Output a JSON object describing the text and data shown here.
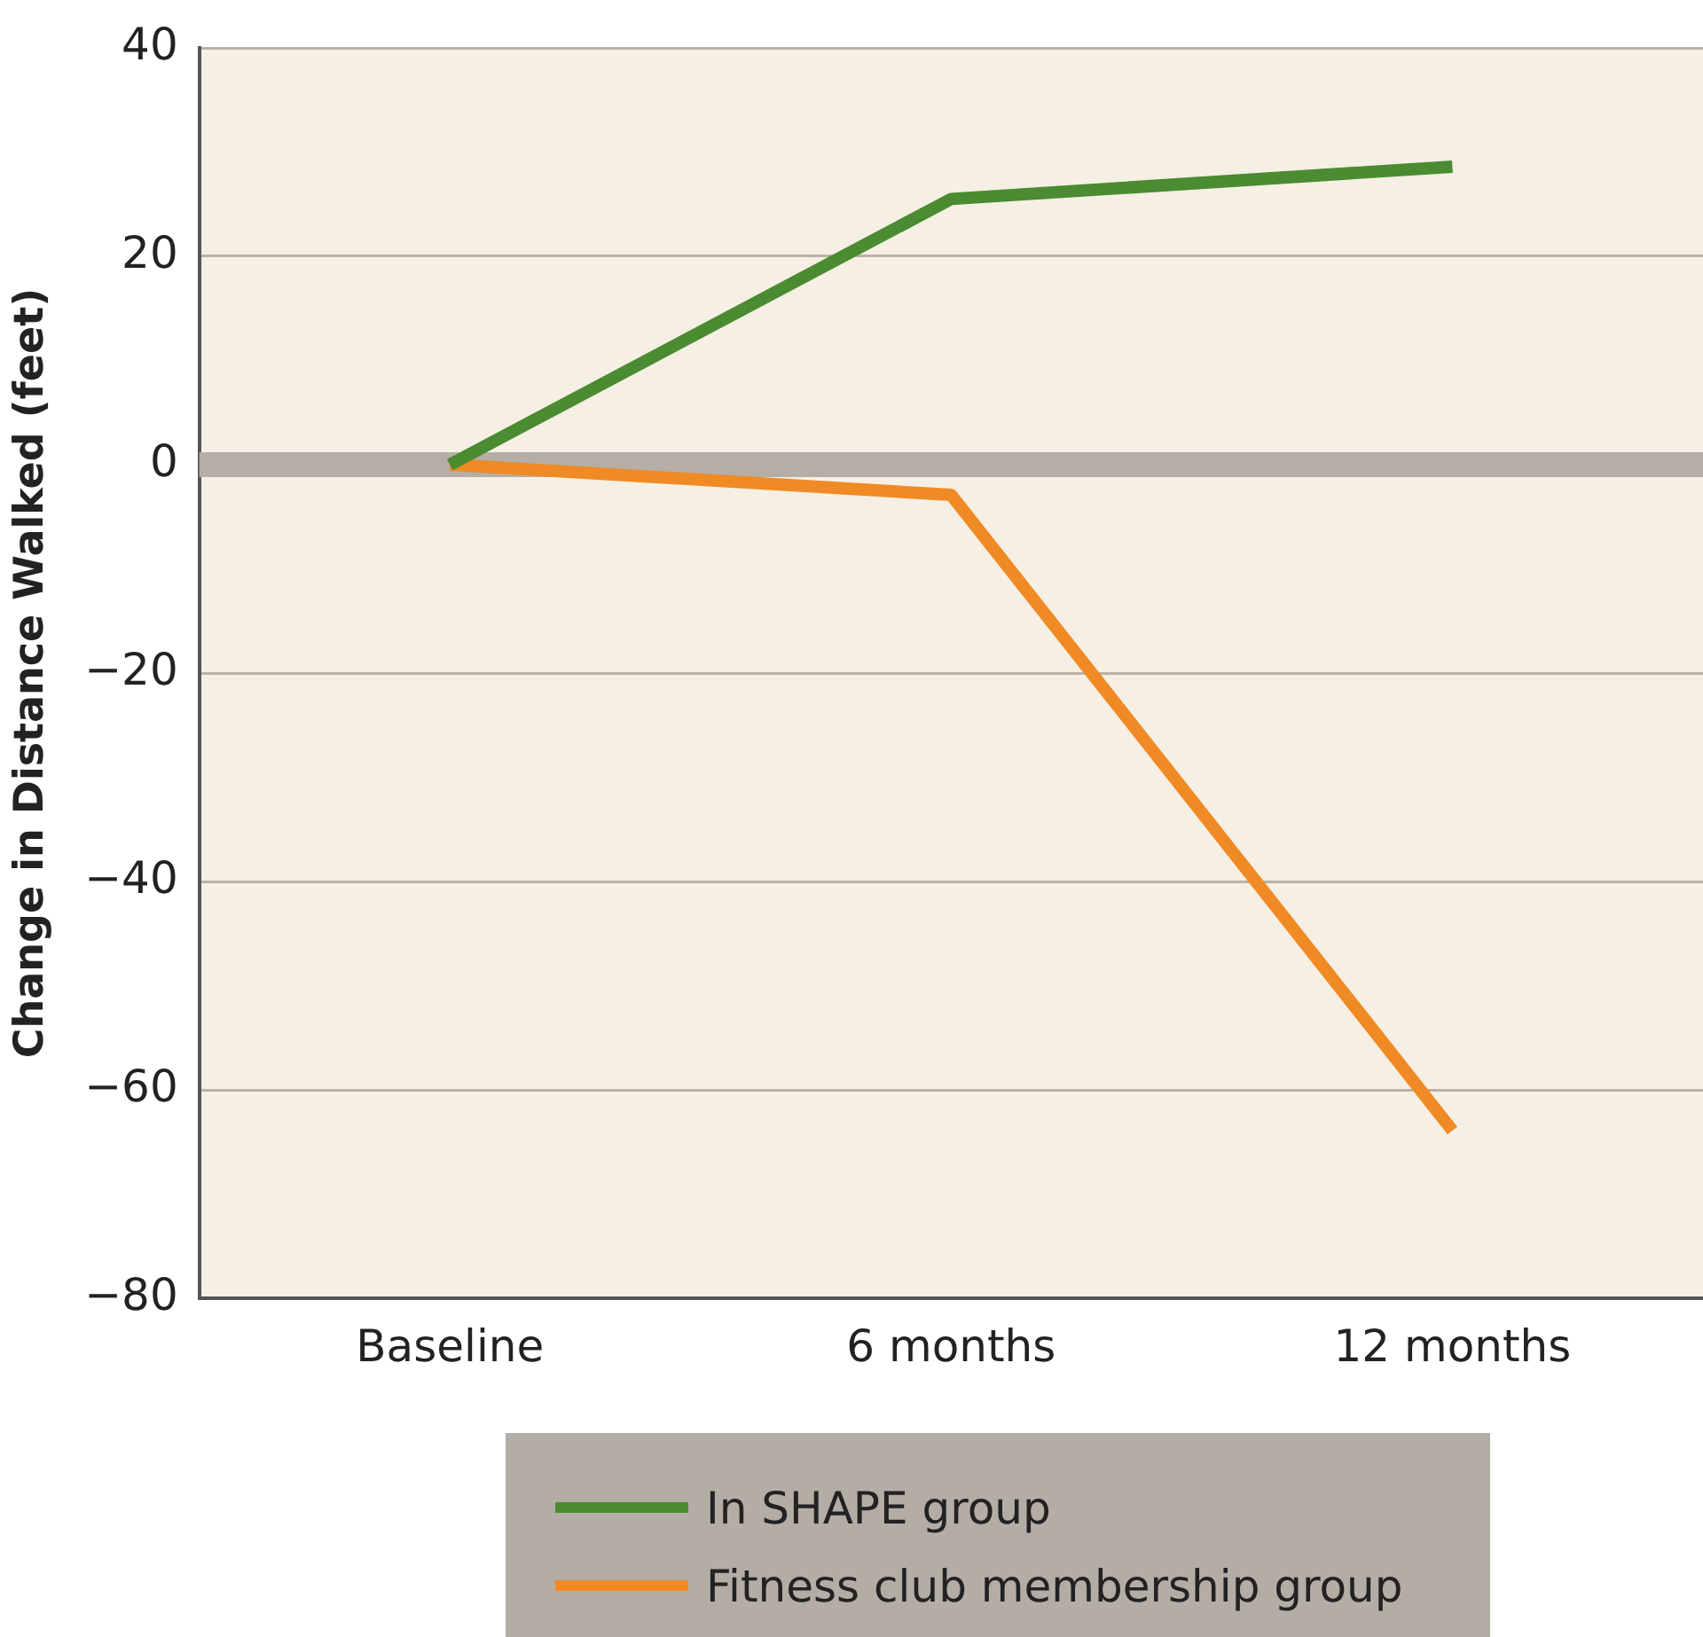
{
  "chart_data": {
    "type": "line",
    "ylabel": "Change in Distance Walked (feet)",
    "categories": [
      "Baseline",
      "6 months",
      "12 months"
    ],
    "series": [
      {
        "name": "In SHAPE group",
        "color": "#4b8b32",
        "values": [
          0,
          25.5,
          28.6
        ]
      },
      {
        "name": "Fitness club membership group",
        "color": "#f08a24",
        "values": [
          0,
          -2.9,
          -63.9
        ]
      }
    ],
    "ylim": [
      -80,
      40
    ],
    "yticks": [
      -80,
      -60,
      -40,
      -20,
      0,
      20,
      40
    ],
    "grid": "y",
    "legend": "bottom",
    "marker": "none",
    "line_style": "solid",
    "ref_lines": [
      {
        "axis": "y",
        "value": 0,
        "color": "#b5aea6"
      }
    ]
  }
}
